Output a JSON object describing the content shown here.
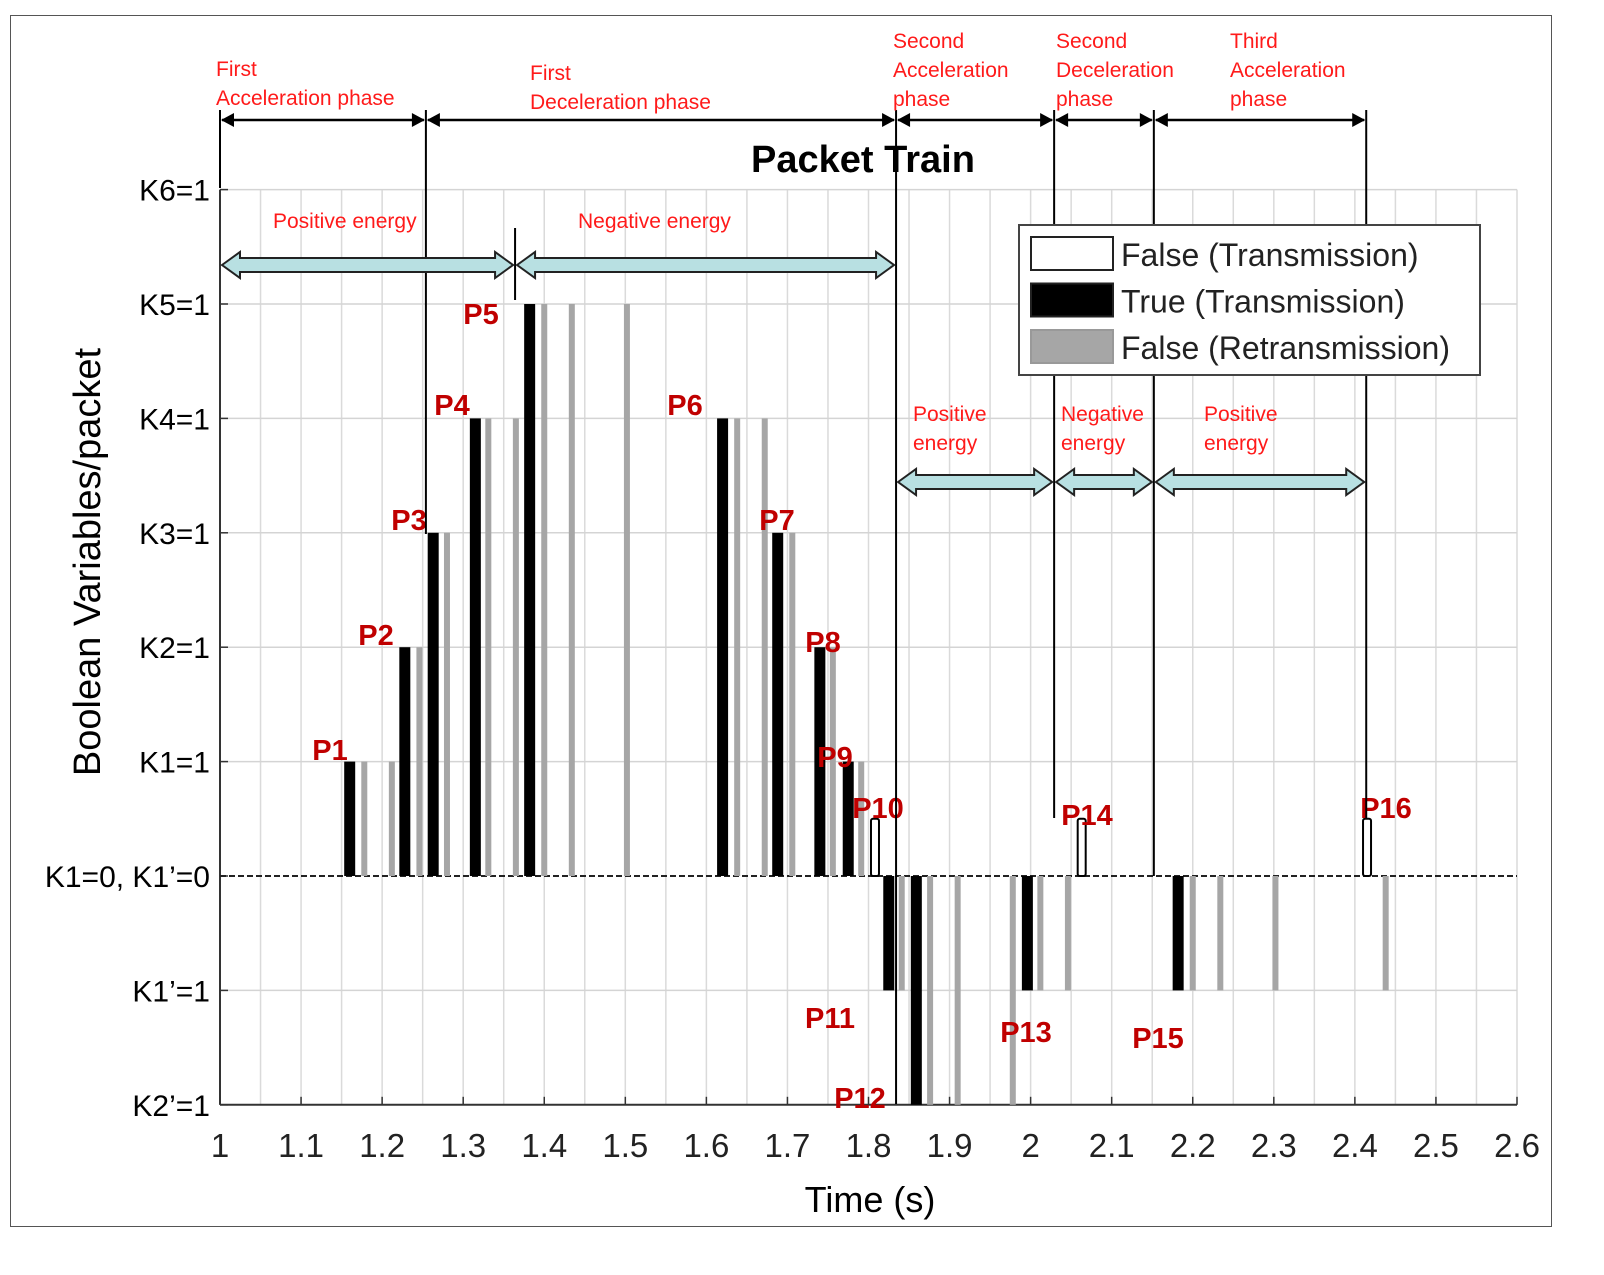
{
  "chart_data": {
    "type": "bar",
    "title": "Packet Train",
    "xlabel": "Time (s)",
    "ylabel": "Boolean Variables/packet",
    "xlim": [
      1,
      2.6
    ],
    "ylim": [
      -2,
      6
    ],
    "grid": true,
    "legend_position": "top-right",
    "x_ticks": [
      "1",
      "1.1",
      "1.2",
      "1.3",
      "1.4",
      "1.5",
      "1.6",
      "1.7",
      "1.8",
      "1.9",
      "2",
      "2.1",
      "2.2",
      "2.3",
      "2.4",
      "2.5",
      "2.6"
    ],
    "y_ticks": [
      {
        "value": 6,
        "label": "K6=1"
      },
      {
        "value": 5,
        "label": "K5=1"
      },
      {
        "value": 4,
        "label": "K4=1"
      },
      {
        "value": 3,
        "label": "K3=1"
      },
      {
        "value": 2,
        "label": "K2=1"
      },
      {
        "value": 1,
        "label": "K1=1"
      },
      {
        "value": 0,
        "label": "K1=0, K1’=0"
      },
      {
        "value": -1,
        "label": "K1’=1"
      },
      {
        "value": -2,
        "label": "K2’=1"
      }
    ],
    "legend": [
      {
        "key": "false_tx",
        "label": "False (Transmission)",
        "color": "#ffffff"
      },
      {
        "key": "true_tx",
        "label": "True (Transmission)",
        "color": "#000000"
      },
      {
        "key": "false_retx",
        "label": "False (Retransmission)",
        "color": "#a6a6a6"
      }
    ],
    "bars": [
      {
        "t": 1.16,
        "value": 1,
        "kind": "true_tx",
        "label": "P1"
      },
      {
        "t": 1.178,
        "value": 1,
        "kind": "false_retx"
      },
      {
        "t": 1.212,
        "value": 1,
        "kind": "false_retx"
      },
      {
        "t": 1.228,
        "value": 2,
        "kind": "true_tx",
        "label": "P2"
      },
      {
        "t": 1.246,
        "value": 2,
        "kind": "false_retx"
      },
      {
        "t": 1.263,
        "value": 3,
        "kind": "true_tx",
        "label": "P3"
      },
      {
        "t": 1.28,
        "value": 3,
        "kind": "false_retx"
      },
      {
        "t": 1.315,
        "value": 4,
        "kind": "true_tx",
        "label": "P4"
      },
      {
        "t": 1.331,
        "value": 4,
        "kind": "false_retx"
      },
      {
        "t": 1.365,
        "value": 4,
        "kind": "false_retx"
      },
      {
        "t": 1.382,
        "value": 5,
        "kind": "true_tx",
        "label": "P5"
      },
      {
        "t": 1.4,
        "value": 5,
        "kind": "false_retx"
      },
      {
        "t": 1.434,
        "value": 5,
        "kind": "false_retx"
      },
      {
        "t": 1.502,
        "value": 5,
        "kind": "false_retx"
      },
      {
        "t": 1.62,
        "value": 4,
        "kind": "true_tx",
        "label": "P6"
      },
      {
        "t": 1.638,
        "value": 4,
        "kind": "false_retx"
      },
      {
        "t": 1.672,
        "value": 4,
        "kind": "false_retx"
      },
      {
        "t": 1.688,
        "value": 3,
        "kind": "true_tx",
        "label": "P7"
      },
      {
        "t": 1.706,
        "value": 3,
        "kind": "false_retx"
      },
      {
        "t": 1.74,
        "value": 2,
        "kind": "true_tx",
        "label": "P8"
      },
      {
        "t": 1.756,
        "value": 2,
        "kind": "false_retx"
      },
      {
        "t": 1.775,
        "value": 1,
        "kind": "true_tx",
        "label": "P9"
      },
      {
        "t": 1.791,
        "value": 1,
        "kind": "false_retx"
      },
      {
        "t": 1.808,
        "value": 0.5,
        "kind": "false_tx",
        "label": "P10"
      },
      {
        "t": 1.825,
        "value": -1,
        "kind": "true_tx",
        "label": "P11"
      },
      {
        "t": 1.841,
        "value": -1,
        "kind": "false_retx"
      },
      {
        "t": 1.859,
        "value": -2,
        "kind": "true_tx",
        "label": "P12"
      },
      {
        "t": 1.876,
        "value": -2,
        "kind": "false_retx"
      },
      {
        "t": 1.91,
        "value": -2,
        "kind": "false_retx"
      },
      {
        "t": 1.978,
        "value": -2,
        "kind": "false_retx"
      },
      {
        "t": 1.996,
        "value": -1,
        "kind": "true_tx",
        "label": "P13"
      },
      {
        "t": 2.012,
        "value": -1,
        "kind": "false_retx"
      },
      {
        "t": 2.046,
        "value": -1,
        "kind": "false_retx"
      },
      {
        "t": 2.063,
        "value": 0.5,
        "kind": "false_tx",
        "label": "P14"
      },
      {
        "t": 2.182,
        "value": -1,
        "kind": "true_tx",
        "label": "P15"
      },
      {
        "t": 2.2,
        "value": -1,
        "kind": "false_retx"
      },
      {
        "t": 2.234,
        "value": -1,
        "kind": "false_retx"
      },
      {
        "t": 2.302,
        "value": -1,
        "kind": "false_retx"
      },
      {
        "t": 2.438,
        "value": -1,
        "kind": "false_retx"
      },
      {
        "t": 2.415,
        "value": 0.5,
        "kind": "false_tx",
        "label": "P16"
      }
    ],
    "phases": [
      {
        "start": 1.0,
        "end": 1.254,
        "text": [
          "First",
          "Acceleration phase"
        ]
      },
      {
        "start": 1.254,
        "end": 1.834,
        "text": [
          "First",
          "Deceleration phase"
        ]
      },
      {
        "start": 1.834,
        "end": 2.029,
        "text": [
          "Second",
          "Acceleration",
          "phase"
        ]
      },
      {
        "start": 2.029,
        "end": 2.152,
        "text": [
          "Second",
          "Deceleration",
          "phase"
        ]
      },
      {
        "start": 2.152,
        "end": 2.414,
        "text": [
          "Third",
          "Acceleration",
          "phase"
        ]
      }
    ],
    "energy": [
      {
        "start": 1.0,
        "end": 1.364,
        "text": [
          "Positive energy"
        ]
      },
      {
        "start": 1.364,
        "end": 1.834,
        "text": [
          "Negative energy"
        ]
      },
      {
        "start": 1.834,
        "end": 2.029,
        "text": [
          "Positive",
          "energy"
        ]
      },
      {
        "start": 2.029,
        "end": 2.152,
        "text": [
          "Negative",
          "energy"
        ]
      },
      {
        "start": 2.152,
        "end": 2.414,
        "text": [
          "Positive",
          "energy"
        ]
      }
    ],
    "colors": {
      "annotation": "#ff1a1a",
      "packet_label": "#c00000",
      "energy_arrow": "#b8e0e2",
      "retransmission": "#a6a6a6"
    }
  }
}
